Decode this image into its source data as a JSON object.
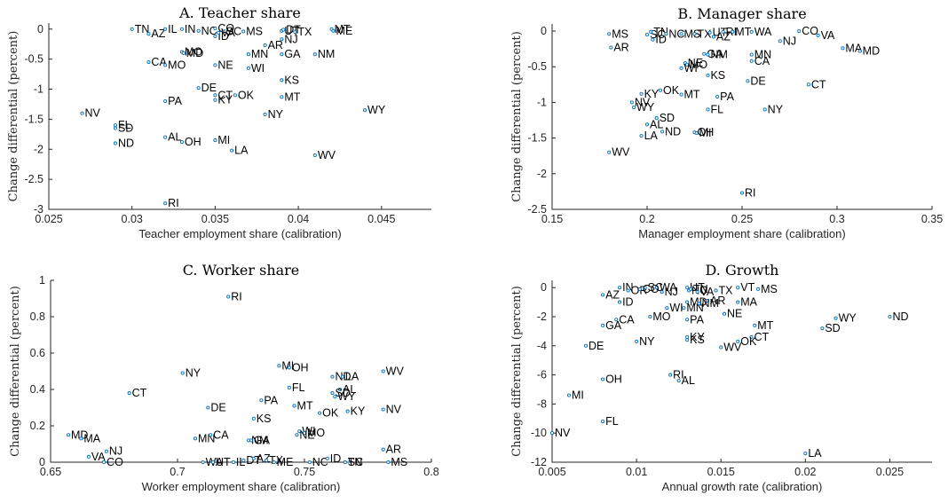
{
  "chart_data": [
    {
      "type": "scatter",
      "title": "A. Teacher share",
      "xlabel": "Teacher employment share (calibration)",
      "ylabel": "Change differential (percent)",
      "xlim": [
        0.025,
        0.048
      ],
      "ylim": [
        -3,
        0.1
      ],
      "xticks": [
        0.025,
        0.03,
        0.035,
        0.04,
        0.045
      ],
      "xtick_labels": [
        "0.025",
        "0.03",
        "0.035",
        "0.04",
        "0.045"
      ],
      "yticks": [
        -3,
        -2.5,
        -2,
        -1.5,
        -1,
        -0.5,
        0
      ],
      "ytick_labels": [
        "-3",
        "-2.5",
        "-2",
        "-1.5",
        "-1",
        "-0.5",
        "0"
      ],
      "points": [
        {
          "label": "TN",
          "x": 0.03,
          "y": 0
        },
        {
          "label": "AZ",
          "x": 0.031,
          "y": -0.08
        },
        {
          "label": "IL",
          "x": 0.032,
          "y": 0
        },
        {
          "label": "IN",
          "x": 0.033,
          "y": 0
        },
        {
          "label": "NC",
          "x": 0.034,
          "y": -0.03
        },
        {
          "label": "CO",
          "x": 0.035,
          "y": 0.01
        },
        {
          "label": "SC",
          "x": 0.0355,
          "y": -0.04
        },
        {
          "label": "MS",
          "x": 0.0367,
          "y": -0.04
        },
        {
          "label": "ID",
          "x": 0.035,
          "y": -0.12
        },
        {
          "label": "VA",
          "x": 0.0352,
          "y": -0.06
        },
        {
          "label": "UT",
          "x": 0.039,
          "y": -0.03
        },
        {
          "label": "DT",
          "x": 0.0391,
          "y": -0.01
        },
        {
          "label": "TX",
          "x": 0.0398,
          "y": -0.05
        },
        {
          "label": "NJ",
          "x": 0.039,
          "y": -0.17
        },
        {
          "label": "MT",
          "x": 0.042,
          "y": 0
        },
        {
          "label": "ME",
          "x": 0.0421,
          "y": -0.03
        },
        {
          "label": "MO",
          "x": 0.033,
          "y": -0.38
        },
        {
          "label": "MD",
          "x": 0.0331,
          "y": -0.4
        },
        {
          "label": "CA",
          "x": 0.031,
          "y": -0.55
        },
        {
          "label": "MO",
          "x": 0.032,
          "y": -0.6
        },
        {
          "label": "NE",
          "x": 0.035,
          "y": -0.6
        },
        {
          "label": "AR",
          "x": 0.038,
          "y": -0.27
        },
        {
          "label": "MN",
          "x": 0.037,
          "y": -0.42
        },
        {
          "label": "GA",
          "x": 0.039,
          "y": -0.42
        },
        {
          "label": "NM",
          "x": 0.041,
          "y": -0.42
        },
        {
          "label": "WI",
          "x": 0.037,
          "y": -0.65
        },
        {
          "label": "KS",
          "x": 0.039,
          "y": -0.85
        },
        {
          "label": "DE",
          "x": 0.034,
          "y": -0.98
        },
        {
          "label": "CT",
          "x": 0.035,
          "y": -1.1
        },
        {
          "label": "OK",
          "x": 0.0362,
          "y": -1.1
        },
        {
          "label": "KY",
          "x": 0.035,
          "y": -1.18
        },
        {
          "label": "PA",
          "x": 0.032,
          "y": -1.2
        },
        {
          "label": "MT",
          "x": 0.039,
          "y": -1.13
        },
        {
          "label": "NV",
          "x": 0.027,
          "y": -1.4
        },
        {
          "label": "NY",
          "x": 0.038,
          "y": -1.42
        },
        {
          "label": "WY",
          "x": 0.044,
          "y": -1.35
        },
        {
          "label": "FL",
          "x": 0.029,
          "y": -1.6
        },
        {
          "label": "SD",
          "x": 0.029,
          "y": -1.65
        },
        {
          "label": "ND",
          "x": 0.029,
          "y": -1.9
        },
        {
          "label": "AL",
          "x": 0.032,
          "y": -1.8
        },
        {
          "label": "OH",
          "x": 0.033,
          "y": -1.88
        },
        {
          "label": "MI",
          "x": 0.035,
          "y": -1.85
        },
        {
          "label": "LA",
          "x": 0.036,
          "y": -2.02
        },
        {
          "label": "WV",
          "x": 0.041,
          "y": -2.1
        },
        {
          "label": "RI",
          "x": 0.032,
          "y": -2.9
        }
      ]
    },
    {
      "type": "scatter",
      "title": "B. Manager share",
      "xlabel": "Manager employment share (calibration)",
      "ylabel": "Change differential (percent)",
      "xlim": [
        0.15,
        0.35
      ],
      "ylim": [
        -2.5,
        0.1
      ],
      "xticks": [
        0.15,
        0.2,
        0.25,
        0.3,
        0.35
      ],
      "xtick_labels": [
        "0.15",
        "0.2",
        "0.25",
        "0.3",
        "0.35"
      ],
      "yticks": [
        -2.5,
        -2,
        -1.5,
        -1,
        -0.5,
        0
      ],
      "ytick_labels": [
        "-2.5",
        "-2",
        "-1.5",
        "-1",
        "-0.5",
        "0"
      ],
      "points": [
        {
          "label": "MS",
          "x": 0.18,
          "y": -0.04
        },
        {
          "label": "AR",
          "x": 0.181,
          "y": -0.23
        },
        {
          "label": "SC",
          "x": 0.2,
          "y": -0.05
        },
        {
          "label": "TN",
          "x": 0.202,
          "y": -0.01
        },
        {
          "label": "ID",
          "x": 0.203,
          "y": -0.12
        },
        {
          "label": "NC",
          "x": 0.21,
          "y": -0.04
        },
        {
          "label": "MS",
          "x": 0.218,
          "y": -0.04
        },
        {
          "label": "TX",
          "x": 0.225,
          "y": -0.04
        },
        {
          "label": "UT",
          "x": 0.233,
          "y": -0.02
        },
        {
          "label": "AZ",
          "x": 0.235,
          "y": -0.08
        },
        {
          "label": "RI",
          "x": 0.24,
          "y": -0.01
        },
        {
          "label": "MT",
          "x": 0.245,
          "y": -0.01
        },
        {
          "label": "WA",
          "x": 0.255,
          "y": -0.01
        },
        {
          "label": "CO",
          "x": 0.28,
          "y": 0
        },
        {
          "label": "VA",
          "x": 0.29,
          "y": -0.06
        },
        {
          "label": "NJ",
          "x": 0.27,
          "y": -0.14
        },
        {
          "label": "MA",
          "x": 0.303,
          "y": -0.24
        },
        {
          "label": "MD",
          "x": 0.312,
          "y": -0.28
        },
        {
          "label": "GA",
          "x": 0.23,
          "y": -0.32
        },
        {
          "label": "NM",
          "x": 0.232,
          "y": -0.33
        },
        {
          "label": "MN",
          "x": 0.255,
          "y": -0.33
        },
        {
          "label": "CA",
          "x": 0.255,
          "y": -0.42
        },
        {
          "label": "NE",
          "x": 0.22,
          "y": -0.45
        },
        {
          "label": "MO",
          "x": 0.221,
          "y": -0.47
        },
        {
          "label": "WI",
          "x": 0.218,
          "y": -0.52
        },
        {
          "label": "KS",
          "x": 0.232,
          "y": -0.62
        },
        {
          "label": "DE",
          "x": 0.253,
          "y": -0.7
        },
        {
          "label": "CT",
          "x": 0.285,
          "y": -0.75
        },
        {
          "label": "OK",
          "x": 0.207,
          "y": -0.83
        },
        {
          "label": "MT",
          "x": 0.218,
          "y": -0.89
        },
        {
          "label": "KY",
          "x": 0.197,
          "y": -0.88
        },
        {
          "label": "PA",
          "x": 0.237,
          "y": -0.92
        },
        {
          "label": "NV",
          "x": 0.192,
          "y": -1.0
        },
        {
          "label": "WY",
          "x": 0.193,
          "y": -1.07
        },
        {
          "label": "FL",
          "x": 0.232,
          "y": -1.1
        },
        {
          "label": "NY",
          "x": 0.262,
          "y": -1.1
        },
        {
          "label": "SD",
          "x": 0.205,
          "y": -1.22
        },
        {
          "label": "AL",
          "x": 0.2,
          "y": -1.31
        },
        {
          "label": "ND",
          "x": 0.208,
          "y": -1.41
        },
        {
          "label": "OH",
          "x": 0.225,
          "y": -1.42
        },
        {
          "label": "MI",
          "x": 0.226,
          "y": -1.43
        },
        {
          "label": "LA",
          "x": 0.197,
          "y": -1.47
        },
        {
          "label": "WV",
          "x": 0.18,
          "y": -1.7
        },
        {
          "label": "RI",
          "x": 0.25,
          "y": -2.27
        }
      ]
    },
    {
      "type": "scatter",
      "title": "C. Worker share",
      "xlabel": "Worker employment share (calibration)",
      "ylabel": "Change differential (percent)",
      "xlim": [
        0.65,
        0.8
      ],
      "ylim": [
        0,
        1
      ],
      "xticks": [
        0.65,
        0.7,
        0.75,
        0.8
      ],
      "xtick_labels": [
        "0.65",
        "0.7",
        "0.75",
        "0.8"
      ],
      "yticks": [
        0,
        0.2,
        0.4,
        0.6,
        0.8,
        1
      ],
      "ytick_labels": [
        "0",
        "0.2",
        "0.4",
        "0.6",
        "0.8",
        "1"
      ],
      "points": [
        {
          "label": "RI",
          "x": 0.72,
          "y": 0.91
        },
        {
          "label": "NY",
          "x": 0.702,
          "y": 0.49
        },
        {
          "label": "MI",
          "x": 0.74,
          "y": 0.53
        },
        {
          "label": "OH",
          "x": 0.744,
          "y": 0.52
        },
        {
          "label": "WV",
          "x": 0.781,
          "y": 0.5
        },
        {
          "label": "ND",
          "x": 0.761,
          "y": 0.47
        },
        {
          "label": "LA",
          "x": 0.765,
          "y": 0.47
        },
        {
          "label": "FL",
          "x": 0.744,
          "y": 0.41
        },
        {
          "label": "AL",
          "x": 0.764,
          "y": 0.4
        },
        {
          "label": "SD",
          "x": 0.761,
          "y": 0.38
        },
        {
          "label": "WY",
          "x": 0.762,
          "y": 0.36
        },
        {
          "label": "CT",
          "x": 0.681,
          "y": 0.38
        },
        {
          "label": "PA",
          "x": 0.733,
          "y": 0.34
        },
        {
          "label": "MT",
          "x": 0.746,
          "y": 0.31
        },
        {
          "label": "DE",
          "x": 0.712,
          "y": 0.3
        },
        {
          "label": "OK",
          "x": 0.756,
          "y": 0.27
        },
        {
          "label": "KY",
          "x": 0.767,
          "y": 0.28
        },
        {
          "label": "NV",
          "x": 0.781,
          "y": 0.29
        },
        {
          "label": "KS",
          "x": 0.73,
          "y": 0.24
        },
        {
          "label": "WI",
          "x": 0.748,
          "y": 0.17
        },
        {
          "label": "MO",
          "x": 0.75,
          "y": 0.16
        },
        {
          "label": "NE",
          "x": 0.747,
          "y": 0.15
        },
        {
          "label": "MD",
          "x": 0.657,
          "y": 0.15
        },
        {
          "label": "MA",
          "x": 0.662,
          "y": 0.13
        },
        {
          "label": "MN",
          "x": 0.707,
          "y": 0.13
        },
        {
          "label": "CA",
          "x": 0.713,
          "y": 0.15
        },
        {
          "label": "NM",
          "x": 0.728,
          "y": 0.12
        },
        {
          "label": "GA",
          "x": 0.729,
          "y": 0.12
        },
        {
          "label": "NJ",
          "x": 0.672,
          "y": 0.06
        },
        {
          "label": "VA",
          "x": 0.665,
          "y": 0.03
        },
        {
          "label": "CO",
          "x": 0.671,
          "y": 0
        },
        {
          "label": "AR",
          "x": 0.781,
          "y": 0.07
        },
        {
          "label": "MS",
          "x": 0.783,
          "y": 0
        },
        {
          "label": "WA",
          "x": 0.71,
          "y": 0
        },
        {
          "label": "UT",
          "x": 0.714,
          "y": 0
        },
        {
          "label": "IL",
          "x": 0.722,
          "y": 0
        },
        {
          "label": "DT",
          "x": 0.726,
          "y": 0.01
        },
        {
          "label": "AZ",
          "x": 0.73,
          "y": 0.02
        },
        {
          "label": "TX",
          "x": 0.735,
          "y": 0.01
        },
        {
          "label": "ME",
          "x": 0.738,
          "y": 0
        },
        {
          "label": "NC",
          "x": 0.752,
          "y": 0
        },
        {
          "label": "ID",
          "x": 0.759,
          "y": 0.02
        },
        {
          "label": "SC",
          "x": 0.766,
          "y": 0
        },
        {
          "label": "TN",
          "x": 0.766,
          "y": 0
        }
      ]
    },
    {
      "type": "scatter",
      "title": "D. Growth",
      "xlabel": "Annual growth rate (calibration)",
      "ylabel": "Change differential (percent)",
      "xlim": [
        0.005,
        0.0275
      ],
      "ylim": [
        -12,
        0.5
      ],
      "xticks": [
        0.005,
        0.01,
        0.015,
        0.02,
        0.025
      ],
      "xtick_labels": [
        "0.005",
        "0.01",
        "0.015",
        "0.02",
        "0.025"
      ],
      "yticks": [
        -12,
        -10,
        -8,
        -6,
        -4,
        -2,
        0
      ],
      "ytick_labels": [
        "-12",
        "-10",
        "-8",
        "-6",
        "-4",
        "-2",
        "0"
      ],
      "points": [
        {
          "label": "AZ",
          "x": 0.008,
          "y": -0.5
        },
        {
          "label": "IN",
          "x": 0.009,
          "y": 0
        },
        {
          "label": "ID",
          "x": 0.009,
          "y": -1.0
        },
        {
          "label": "OR",
          "x": 0.0095,
          "y": -0.2
        },
        {
          "label": "SC",
          "x": 0.0105,
          "y": 0
        },
        {
          "label": "WA",
          "x": 0.0112,
          "y": 0
        },
        {
          "label": "CO",
          "x": 0.0102,
          "y": -0.1
        },
        {
          "label": "NJ",
          "x": 0.0115,
          "y": -0.3
        },
        {
          "label": "UT",
          "x": 0.013,
          "y": 0
        },
        {
          "label": "NC",
          "x": 0.0131,
          "y": -0.2
        },
        {
          "label": "TN",
          "x": 0.0132,
          "y": -0.1
        },
        {
          "label": "VA",
          "x": 0.0136,
          "y": -0.3
        },
        {
          "label": "TX",
          "x": 0.0147,
          "y": -0.2
        },
        {
          "label": "VT",
          "x": 0.016,
          "y": 0
        },
        {
          "label": "MS",
          "x": 0.0172,
          "y": -0.1
        },
        {
          "label": "MD",
          "x": 0.013,
          "y": -1.0
        },
        {
          "label": "AR",
          "x": 0.0142,
          "y": -0.9
        },
        {
          "label": "MA",
          "x": 0.016,
          "y": -1.0
        },
        {
          "label": "WI",
          "x": 0.0118,
          "y": -1.4
        },
        {
          "label": "MN",
          "x": 0.0128,
          "y": -1.4
        },
        {
          "label": "NM",
          "x": 0.0137,
          "y": -1.1
        },
        {
          "label": "NE",
          "x": 0.0152,
          "y": -1.8
        },
        {
          "label": "MO",
          "x": 0.0108,
          "y": -2.0
        },
        {
          "label": "PA",
          "x": 0.013,
          "y": -2.2
        },
        {
          "label": "CA",
          "x": 0.0088,
          "y": -2.2
        },
        {
          "label": "GA",
          "x": 0.008,
          "y": -2.6
        },
        {
          "label": "WY",
          "x": 0.0218,
          "y": -2.1
        },
        {
          "label": "ND",
          "x": 0.025,
          "y": -2.0
        },
        {
          "label": "SD",
          "x": 0.021,
          "y": -2.8
        },
        {
          "label": "MT",
          "x": 0.017,
          "y": -2.6
        },
        {
          "label": "CT",
          "x": 0.0168,
          "y": -3.4
        },
        {
          "label": "KY",
          "x": 0.013,
          "y": -3.4
        },
        {
          "label": "KS",
          "x": 0.013,
          "y": -3.6
        },
        {
          "label": "OK",
          "x": 0.016,
          "y": -3.7
        },
        {
          "label": "WV",
          "x": 0.015,
          "y": -4.1
        },
        {
          "label": "NY",
          "x": 0.01,
          "y": -3.7
        },
        {
          "label": "DE",
          "x": 0.007,
          "y": -4.0
        },
        {
          "label": "RI",
          "x": 0.012,
          "y": -6.0
        },
        {
          "label": "AL",
          "x": 0.0125,
          "y": -6.4
        },
        {
          "label": "OH",
          "x": 0.008,
          "y": -6.3
        },
        {
          "label": "MI",
          "x": 0.006,
          "y": -7.4
        },
        {
          "label": "FL",
          "x": 0.008,
          "y": -9.2
        },
        {
          "label": "NV",
          "x": 0.005,
          "y": -10.0
        },
        {
          "label": "LA",
          "x": 0.02,
          "y": -11.4
        }
      ]
    }
  ]
}
